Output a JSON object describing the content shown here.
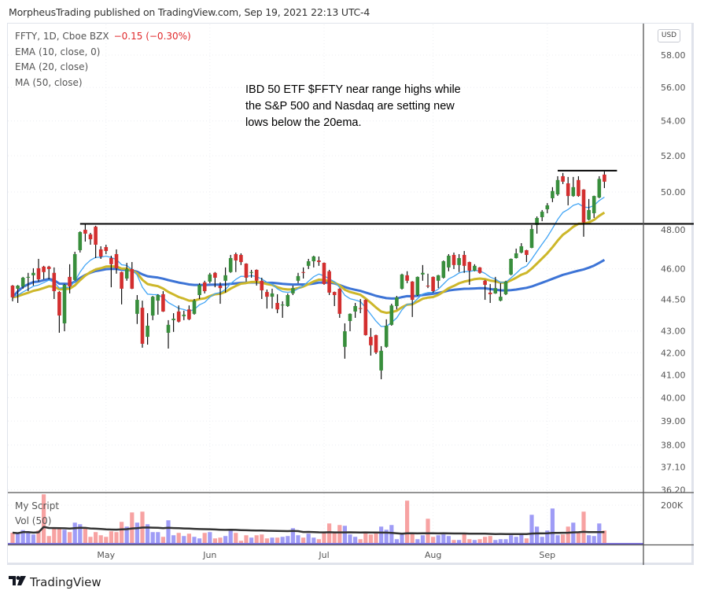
{
  "header": {
    "published": "MorpheusTrading published on TradingView.com, Sep 19, 2021 22:13 UTC-4"
  },
  "legend": {
    "symbol": "FFTY, 1D, Cboe BZX",
    "change": "−0.15 (−0.30%)",
    "indicators": [
      "EMA (10, close, 0)",
      "EMA (20, close)",
      "MA (50, close)"
    ]
  },
  "volume_legend": {
    "title": "My Script",
    "vol": "Vol (50)"
  },
  "currency_badge": "USD",
  "footer": {
    "brand": "TradingView",
    "logo_icon": "tradingview-logo"
  },
  "chart_data": {
    "type": "candlestick",
    "annotation": [
      "IBD 50 ETF $FFTY near range highs while",
      "the S&P 500 and Nasdaq are setting new",
      "lows below the 20ema."
    ],
    "price_axis": {
      "scale": "log",
      "ylim": [
        36.2,
        58.0
      ],
      "ticks": [
        "58.00",
        "56.00",
        "54.00",
        "52.00",
        "50.00",
        "48.00",
        "46.00",
        "44.50",
        "43.00",
        "42.00",
        "41.00",
        "40.00",
        "39.00",
        "38.00",
        "37.10",
        "36.20"
      ]
    },
    "volume_axis": {
      "ticks": [
        "200K"
      ]
    },
    "time_axis": [
      {
        "label": "May",
        "date": "2021-05-03"
      },
      {
        "label": "Jun",
        "date": "2021-06-01"
      },
      {
        "label": "Jul",
        "date": "2021-07-01"
      },
      {
        "label": "Aug",
        "date": "2021-08-02"
      },
      {
        "label": "Sep",
        "date": "2021-09-01"
      }
    ],
    "grid": true,
    "colors": {
      "up": "#388e3c",
      "down": "#d32f2f",
      "vol_up": "#9f9cf6",
      "vol_down": "#f7a2a2",
      "ema10": "#42a5f5",
      "ema20": "#cdb72a",
      "ma50": "#3d74d6",
      "vol_ma": "#333333",
      "drawing": "#000000"
    },
    "indicators": [
      {
        "name": "EMA (10, close, 0)",
        "type": "ema",
        "period": 10
      },
      {
        "name": "EMA (20, close)",
        "type": "ema",
        "period": 20
      },
      {
        "name": "MA (50, close)",
        "type": "sma",
        "period": 50
      },
      {
        "name": "Vol (50)",
        "type": "volume_sma",
        "period": 50
      }
    ],
    "horizontal_lines": [
      {
        "price": 48.3,
        "from": "2021-04-26",
        "extend": "right"
      },
      {
        "price": 51.17,
        "from": "2021-09-03",
        "extend": "none"
      }
    ],
    "columns": [
      "date",
      "open",
      "high",
      "low",
      "close",
      "volume"
    ],
    "candles": [
      [
        "2021-04-07",
        45.17,
        45.2,
        44.41,
        44.6,
        56000
      ],
      [
        "2021-04-08",
        45.02,
        45.2,
        44.33,
        45.17,
        51000
      ],
      [
        "2021-04-09",
        45.13,
        45.6,
        45.02,
        45.56,
        69000
      ],
      [
        "2021-04-12",
        45.56,
        45.8,
        44.9,
        45.6,
        59000
      ],
      [
        "2021-04-13",
        45.68,
        46.03,
        45.17,
        45.8,
        47000
      ],
      [
        "2021-04-14",
        46.03,
        46.5,
        45.37,
        45.48,
        67000
      ],
      [
        "2021-04-15",
        46.11,
        46.15,
        45.48,
        45.84,
        251000
      ],
      [
        "2021-04-16",
        46.11,
        46.15,
        45.48,
        45.99,
        39000
      ],
      [
        "2021-04-19",
        45.8,
        46.07,
        44.52,
        44.9,
        79000
      ],
      [
        "2021-04-20",
        44.86,
        44.9,
        42.92,
        43.73,
        75000
      ],
      [
        "2021-04-21",
        43.36,
        45.25,
        42.99,
        45.21,
        71000
      ],
      [
        "2021-04-22",
        45.6,
        46.23,
        44.79,
        45.13,
        59000
      ],
      [
        "2021-04-23",
        45.45,
        46.86,
        45.41,
        46.74,
        107000
      ],
      [
        "2021-04-26",
        46.94,
        47.91,
        46.82,
        47.87,
        99000
      ],
      [
        "2021-04-27",
        47.99,
        48.28,
        47.38,
        47.79,
        79000
      ],
      [
        "2021-04-28",
        47.75,
        47.83,
        47.22,
        47.5,
        35000
      ],
      [
        "2021-04-29",
        48.15,
        48.2,
        46.54,
        47.22,
        59000
      ],
      [
        "2021-04-30",
        46.98,
        47.14,
        46.5,
        46.62,
        43000
      ],
      [
        "2021-05-03",
        47.1,
        47.22,
        46.74,
        46.9,
        35000
      ],
      [
        "2021-05-04",
        46.54,
        46.66,
        45.09,
        46.23,
        63000
      ],
      [
        "2021-05-05",
        46.74,
        46.98,
        45.76,
        46.03,
        59000
      ],
      [
        "2021-05-06",
        45.84,
        45.86,
        44.26,
        45.02,
        111000
      ],
      [
        "2021-05-07",
        45.52,
        46.3,
        45.41,
        45.99,
        87000
      ],
      [
        "2021-05-10",
        45.99,
        46.34,
        45.0,
        45.02,
        159000
      ],
      [
        "2021-05-11",
        43.81,
        44.71,
        43.33,
        44.48,
        107000
      ],
      [
        "2021-05-12",
        44.1,
        44.44,
        42.23,
        42.41,
        163000
      ],
      [
        "2021-05-13",
        42.73,
        43.84,
        42.37,
        43.25,
        99000
      ],
      [
        "2021-05-14",
        43.73,
        44.67,
        43.51,
        44.63,
        59000
      ],
      [
        "2021-05-17",
        44.44,
        44.75,
        43.77,
        44.71,
        59000
      ],
      [
        "2021-05-18",
        44.75,
        44.9,
        43.9,
        43.92,
        35000
      ],
      [
        "2021-05-19",
        42.92,
        43.51,
        42.19,
        43.29,
        119000
      ],
      [
        "2021-05-20",
        43.51,
        43.84,
        42.96,
        43.58,
        43000
      ],
      [
        "2021-05-21",
        43.92,
        44.21,
        43.4,
        43.44,
        55000
      ],
      [
        "2021-05-24",
        43.7,
        43.96,
        43.51,
        43.77,
        39000
      ],
      [
        "2021-05-25",
        44.02,
        44.21,
        43.51,
        43.55,
        51000
      ],
      [
        "2021-05-26",
        43.81,
        44.52,
        43.77,
        44.44,
        35000
      ],
      [
        "2021-05-27",
        44.71,
        45.29,
        44.52,
        45.21,
        27000
      ],
      [
        "2021-05-28",
        45.33,
        45.41,
        44.79,
        44.9,
        55000
      ],
      [
        "2021-06-01",
        45.37,
        45.8,
        45.29,
        45.72,
        59000
      ],
      [
        "2021-06-02",
        45.8,
        45.84,
        45.09,
        45.56,
        27000
      ],
      [
        "2021-06-03",
        45.17,
        45.33,
        44.29,
        45.05,
        31000
      ],
      [
        "2021-06-04",
        45.41,
        46.07,
        44.83,
        45.68,
        39000
      ],
      [
        "2021-06-07",
        45.84,
        46.7,
        45.8,
        46.54,
        76000
      ],
      [
        "2021-06-08",
        46.74,
        46.82,
        45.84,
        46.42,
        55000
      ],
      [
        "2021-06-09",
        46.7,
        46.78,
        46.19,
        46.34,
        15000
      ],
      [
        "2021-06-10",
        46.26,
        46.28,
        45.37,
        45.56,
        43000
      ],
      [
        "2021-06-11",
        45.8,
        45.95,
        45.56,
        45.84,
        31000
      ],
      [
        "2021-06-14",
        45.95,
        45.97,
        45.17,
        45.41,
        43000
      ],
      [
        "2021-06-15",
        45.41,
        45.56,
        44.52,
        44.94,
        47000
      ],
      [
        "2021-06-16",
        44.86,
        44.98,
        44.06,
        44.63,
        27000
      ],
      [
        "2021-06-17",
        44.63,
        45.02,
        44.06,
        44.79,
        31000
      ],
      [
        "2021-06-18",
        44.33,
        44.75,
        43.84,
        44.02,
        31000
      ],
      [
        "2021-06-21",
        44.21,
        44.41,
        43.62,
        44.25,
        35000
      ],
      [
        "2021-06-22",
        44.18,
        44.79,
        44.14,
        44.71,
        39000
      ],
      [
        "2021-06-23",
        44.79,
        45.17,
        44.71,
        45.05,
        79000
      ],
      [
        "2021-06-24",
        45.41,
        45.8,
        45.29,
        45.64,
        43000
      ],
      [
        "2021-06-25",
        45.84,
        46.07,
        45.52,
        45.8,
        31000
      ],
      [
        "2021-06-28",
        46.15,
        46.5,
        45.99,
        46.38,
        51000
      ],
      [
        "2021-06-29",
        46.38,
        46.66,
        46.07,
        46.62,
        31000
      ],
      [
        "2021-06-30",
        46.42,
        46.62,
        46.15,
        46.34,
        23000
      ],
      [
        "2021-07-01",
        46.3,
        46.32,
        45.21,
        45.25,
        55000
      ],
      [
        "2021-07-02",
        45.88,
        45.95,
        44.71,
        44.83,
        103000
      ],
      [
        "2021-07-06",
        44.86,
        44.88,
        44.18,
        44.71,
        55000
      ],
      [
        "2021-07-07",
        45.02,
        45.04,
        43.62,
        43.81,
        95000
      ],
      [
        "2021-07-08",
        42.27,
        43.36,
        41.73,
        42.99,
        91000
      ],
      [
        "2021-07-09",
        43.47,
        43.83,
        42.99,
        43.81,
        47000
      ],
      [
        "2021-07-12",
        43.92,
        44.33,
        43.62,
        44.18,
        35000
      ],
      [
        "2021-07-13",
        44.08,
        44.52,
        43.84,
        44.06,
        23000
      ],
      [
        "2021-07-14",
        44.48,
        44.5,
        42.79,
        42.81,
        55000
      ],
      [
        "2021-07-15",
        42.73,
        43.14,
        41.87,
        42.34,
        47000
      ],
      [
        "2021-07-16",
        42.81,
        42.83,
        41.94,
        42.01,
        55000
      ],
      [
        "2021-07-19",
        41.2,
        42.3,
        40.81,
        42.09,
        87000
      ],
      [
        "2021-07-20",
        42.27,
        43.55,
        42.23,
        43.25,
        71000
      ],
      [
        "2021-07-21",
        43.29,
        44.29,
        43.25,
        44.21,
        95000
      ],
      [
        "2021-07-22",
        44.18,
        44.67,
        44.02,
        44.6,
        23000
      ],
      [
        "2021-07-23",
        45.02,
        45.76,
        44.98,
        45.72,
        47000
      ],
      [
        "2021-07-26",
        45.68,
        45.88,
        45.29,
        45.41,
        219000
      ],
      [
        "2021-07-27",
        45.37,
        45.39,
        43.66,
        44.48,
        55000
      ],
      [
        "2021-07-28",
        44.71,
        45.62,
        44.67,
        45.6,
        23000
      ],
      [
        "2021-07-29",
        45.72,
        46.19,
        45.41,
        45.8,
        43000
      ],
      [
        "2021-07-30",
        45.17,
        45.76,
        45.05,
        45.13,
        127000
      ],
      [
        "2021-08-02",
        45.6,
        45.62,
        44.83,
        44.9,
        35000
      ],
      [
        "2021-08-03",
        45.41,
        45.7,
        45.05,
        45.68,
        43000
      ],
      [
        "2021-08-04",
        45.56,
        46.42,
        45.52,
        46.38,
        47000
      ],
      [
        "2021-08-05",
        46.07,
        46.74,
        45.88,
        46.66,
        39000
      ],
      [
        "2021-08-06",
        46.7,
        46.82,
        45.99,
        46.19,
        19000
      ],
      [
        "2021-08-09",
        46.19,
        46.74,
        45.84,
        46.54,
        19000
      ],
      [
        "2021-08-10",
        46.7,
        46.9,
        45.8,
        46.15,
        53000
      ],
      [
        "2021-08-11",
        46.34,
        46.36,
        45.21,
        45.91,
        23000
      ],
      [
        "2021-08-12",
        45.91,
        46.23,
        45.88,
        46.15,
        19000
      ],
      [
        "2021-08-13",
        46.07,
        46.09,
        45.76,
        45.8,
        23000
      ],
      [
        "2021-08-16",
        45.41,
        45.45,
        44.48,
        45.21,
        35000
      ],
      [
        "2021-08-17",
        44.83,
        45.25,
        44.33,
        44.75,
        39000
      ],
      [
        "2021-08-18",
        44.79,
        45.6,
        44.77,
        45.05,
        19000
      ],
      [
        "2021-08-19",
        44.44,
        45.29,
        44.41,
        44.63,
        23000
      ],
      [
        "2021-08-20",
        44.75,
        45.41,
        44.71,
        45.37,
        23000
      ],
      [
        "2021-08-23",
        45.72,
        46.52,
        45.68,
        46.5,
        43000
      ],
      [
        "2021-08-24",
        46.54,
        47.02,
        46.52,
        46.78,
        35000
      ],
      [
        "2021-08-25",
        46.82,
        47.3,
        46.78,
        47.14,
        47000
      ],
      [
        "2021-08-26",
        46.94,
        46.96,
        46.34,
        46.7,
        27000
      ],
      [
        "2021-08-27",
        47.06,
        48.24,
        47.04,
        48.03,
        147000
      ],
      [
        "2021-08-30",
        48.24,
        48.69,
        47.79,
        48.61,
        87000
      ],
      [
        "2021-08-31",
        48.65,
        49.03,
        48.44,
        48.94,
        35000
      ],
      [
        "2021-09-01",
        49.07,
        49.4,
        48.86,
        49.28,
        67000
      ],
      [
        "2021-09-02",
        49.66,
        50.26,
        49.45,
        50.05,
        179000
      ],
      [
        "2021-09-03",
        49.87,
        50.86,
        49.79,
        50.65,
        43000
      ],
      [
        "2021-09-07",
        50.86,
        51.04,
        50.43,
        50.56,
        47000
      ],
      [
        "2021-09-08",
        50.47,
        50.82,
        49.28,
        49.78,
        87000
      ],
      [
        "2021-09-09",
        49.78,
        50.82,
        49.74,
        50.26,
        107000
      ],
      [
        "2021-09-10",
        50.65,
        50.86,
        49.74,
        49.78,
        59000
      ],
      [
        "2021-09-13",
        50.13,
        50.15,
        47.63,
        48.37,
        163000
      ],
      [
        "2021-09-14",
        48.52,
        49.62,
        48.48,
        49.03,
        43000
      ],
      [
        "2021-09-15",
        48.86,
        49.8,
        48.61,
        49.78,
        39000
      ],
      [
        "2021-09-16",
        49.7,
        50.86,
        49.66,
        50.71,
        103000
      ],
      [
        "2021-09-17",
        50.95,
        51.12,
        50.21,
        50.56,
        67000
      ]
    ]
  }
}
